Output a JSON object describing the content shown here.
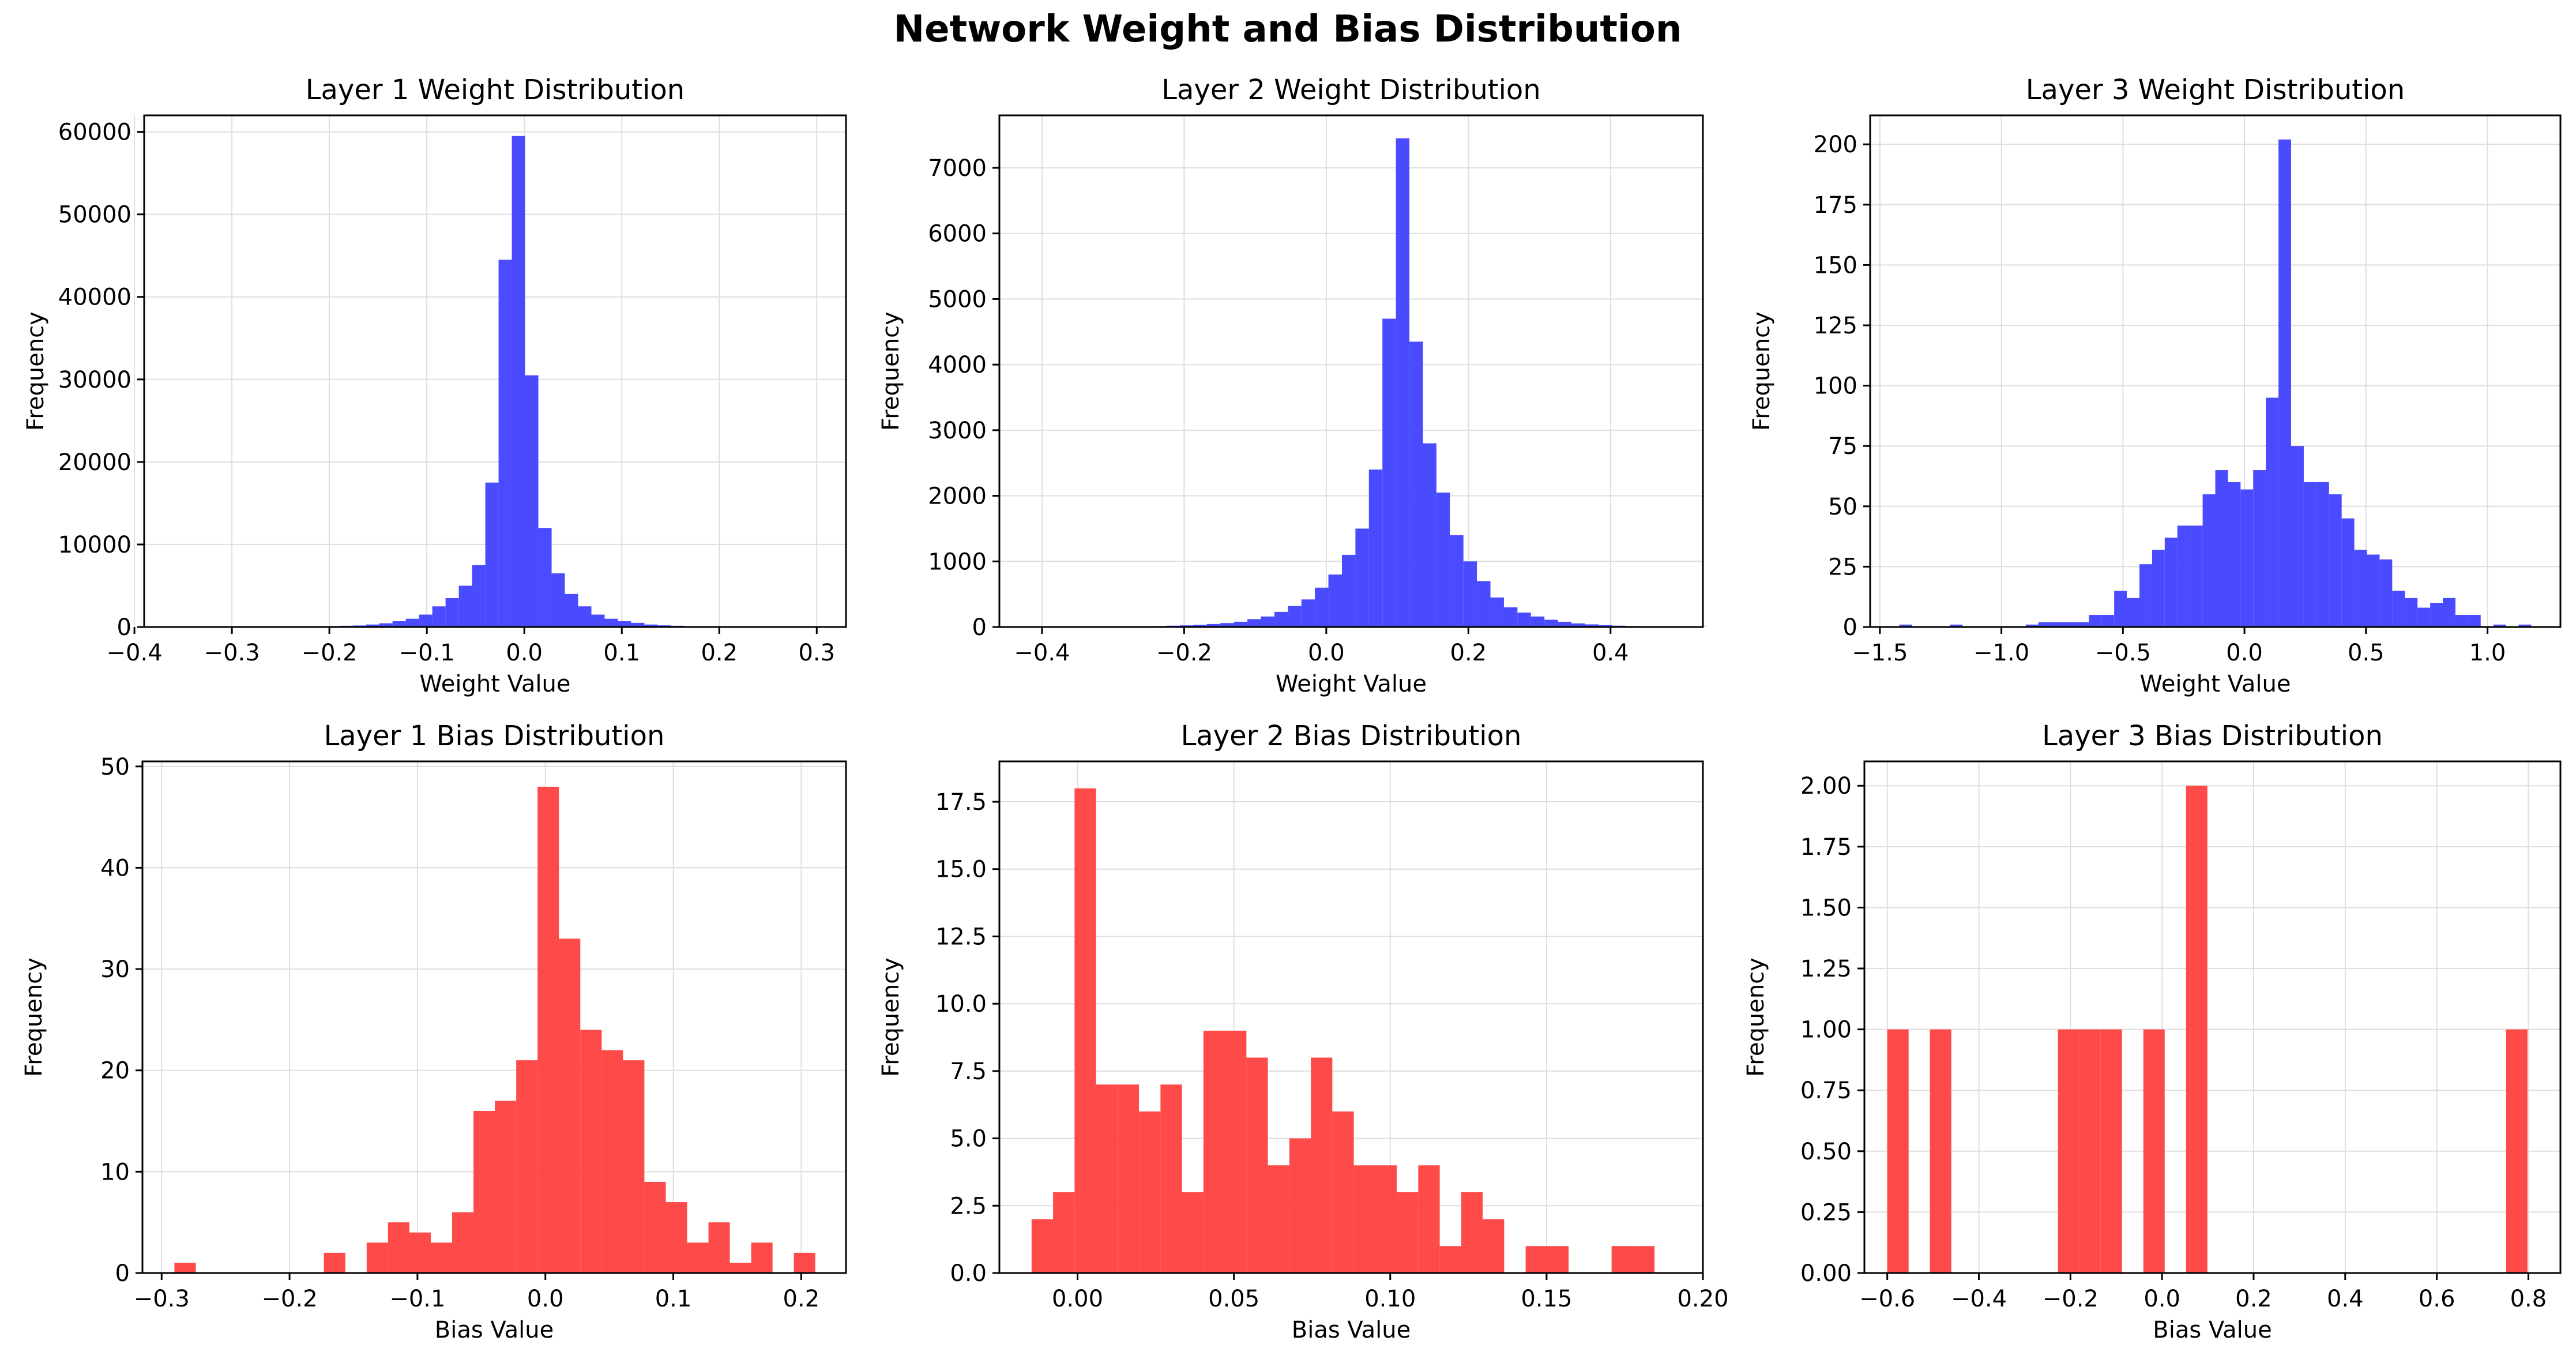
{
  "figure": {
    "title": "Network Weight and Bias Distribution"
  },
  "colors": {
    "weights": "#4a4aff",
    "biases": "#ff4a4a",
    "grid": "#dedede",
    "axis": "#000000"
  },
  "chart_data": [
    {
      "type": "bar",
      "title": "Layer 1 Weight Distribution",
      "xlabel": "Weight Value",
      "ylabel": "Frequency",
      "xlim": [
        -0.39,
        0.33
      ],
      "ylim": [
        0,
        62000
      ],
      "xticks": [
        -0.4,
        -0.3,
        -0.2,
        -0.1,
        0.0,
        0.1,
        0.2,
        0.3
      ],
      "xtick_labels": [
        "−0.4",
        "−0.3",
        "−0.2",
        "−0.1",
        "0.0",
        "0.1",
        "0.2",
        "0.3"
      ],
      "yticks": [
        0,
        10000,
        20000,
        30000,
        40000,
        50000,
        60000
      ],
      "ytick_labels": [
        "0",
        "10000",
        "20000",
        "30000",
        "40000",
        "50000",
        "60000"
      ],
      "grid": true,
      "color_key": "weights",
      "bin_start": -0.38,
      "bin_width": 0.0136,
      "values": [
        20,
        20,
        20,
        30,
        30,
        30,
        40,
        40,
        50,
        60,
        70,
        80,
        100,
        120,
        150,
        180,
        300,
        450,
        700,
        1000,
        1500,
        2500,
        3500,
        5000,
        7500,
        17500,
        44500,
        59500,
        30500,
        12000,
        6500,
        4000,
        2500,
        1500,
        1000,
        700,
        500,
        300,
        200,
        150,
        100,
        80,
        60,
        50,
        40,
        30,
        30,
        20,
        20,
        20
      ]
    },
    {
      "type": "bar",
      "title": "Layer 2 Weight Distribution",
      "xlabel": "Weight Value",
      "ylabel": "Frequency",
      "xlim": [
        -0.46,
        0.53
      ],
      "ylim": [
        0,
        7800
      ],
      "xticks": [
        -0.4,
        -0.2,
        0.0,
        0.2,
        0.4
      ],
      "xtick_labels": [
        "−0.4",
        "−0.2",
        "0.0",
        "0.2",
        "0.4"
      ],
      "yticks": [
        0,
        1000,
        2000,
        3000,
        4000,
        5000,
        6000,
        7000
      ],
      "ytick_labels": [
        "0",
        "1000",
        "2000",
        "3000",
        "4000",
        "5000",
        "6000",
        "7000"
      ],
      "grid": true,
      "color_key": "weights",
      "bin_start": -0.415,
      "bin_width": 0.019,
      "values": [
        2,
        3,
        3,
        5,
        5,
        8,
        8,
        10,
        12,
        15,
        20,
        25,
        35,
        45,
        60,
        80,
        120,
        160,
        230,
        320,
        420,
        600,
        800,
        1100,
        1500,
        2400,
        4700,
        7450,
        4350,
        2800,
        2050,
        1400,
        1000,
        700,
        450,
        300,
        220,
        160,
        110,
        80,
        55,
        40,
        30,
        20,
        15,
        10,
        8,
        5,
        4,
        3
      ]
    },
    {
      "type": "bar",
      "title": "Layer 3 Weight Distribution",
      "xlabel": "Weight Value",
      "ylabel": "Frequency",
      "xlim": [
        -1.54,
        1.3
      ],
      "ylim": [
        0,
        212
      ],
      "xticks": [
        -1.5,
        -1.0,
        -0.5,
        0.0,
        0.5,
        1.0
      ],
      "xtick_labels": [
        "−1.5",
        "−1.0",
        "−0.5",
        "0.0",
        "0.5",
        "1.0"
      ],
      "yticks": [
        0,
        25,
        50,
        75,
        100,
        125,
        150,
        175,
        200
      ],
      "ytick_labels": [
        "0",
        "25",
        "50",
        "75",
        "100",
        "125",
        "150",
        "175",
        "200"
      ],
      "grid": true,
      "color_key": "weights",
      "bin_start": -1.42,
      "bin_width": 0.052,
      "values": [
        1,
        0,
        0,
        0,
        1,
        0,
        0,
        0,
        0,
        0,
        1,
        2,
        2,
        2,
        2,
        5,
        5,
        15,
        12,
        26,
        32,
        37,
        42,
        42,
        55,
        65,
        60,
        57,
        65,
        95,
        202,
        75,
        60,
        60,
        55,
        45,
        32,
        30,
        28,
        15,
        12,
        8,
        10,
        12,
        5,
        5,
        0,
        1,
        0,
        1
      ]
    },
    {
      "type": "bar",
      "title": "Layer 1 Bias Distribution",
      "xlabel": "Bias Value",
      "ylabel": "Frequency",
      "xlim": [
        -0.315,
        0.235
      ],
      "ylim": [
        0,
        50.5
      ],
      "xticks": [
        -0.3,
        -0.2,
        -0.1,
        0.0,
        0.1,
        0.2
      ],
      "xtick_labels": [
        "−0.3",
        "−0.2",
        "−0.1",
        "0.0",
        "0.1",
        "0.2"
      ],
      "yticks": [
        0,
        10,
        20,
        30,
        40,
        50
      ],
      "ytick_labels": [
        "0",
        "10",
        "20",
        "30",
        "40",
        "50"
      ],
      "grid": true,
      "color_key": "biases",
      "bin_start": -0.29,
      "bin_width": 0.0167,
      "values": [
        1,
        0,
        0,
        0,
        0,
        0,
        0,
        2,
        0,
        3,
        5,
        4,
        3,
        6,
        16,
        17,
        21,
        48,
        33,
        24,
        22,
        21,
        9,
        7,
        3,
        5,
        1,
        3,
        0,
        2
      ]
    },
    {
      "type": "bar",
      "title": "Layer 2 Bias Distribution",
      "xlabel": "Bias Value",
      "ylabel": "Frequency",
      "xlim": [
        -0.025,
        0.2
      ],
      "ylim": [
        0,
        19
      ],
      "xticks": [
        0.0,
        0.05,
        0.1,
        0.15,
        0.2
      ],
      "xtick_labels": [
        "0.00",
        "0.05",
        "0.10",
        "0.15",
        "0.20"
      ],
      "yticks": [
        0,
        2.5,
        5,
        7.5,
        10,
        12.5,
        15,
        17.5
      ],
      "ytick_labels": [
        "0.0",
        "2.5",
        "5.0",
        "7.5",
        "10.0",
        "12.5",
        "15.0",
        "17.5"
      ],
      "grid": true,
      "color_key": "biases",
      "bin_start": -0.0147,
      "bin_width": 0.00687,
      "values": [
        2,
        3,
        18,
        7,
        7,
        6,
        7,
        3,
        9,
        9,
        8,
        4,
        5,
        8,
        6,
        4,
        4,
        3,
        4,
        1,
        3,
        2,
        0,
        1,
        1,
        0,
        0,
        1,
        1,
        0
      ]
    },
    {
      "type": "bar",
      "title": "Layer 3 Bias Distribution",
      "xlabel": "Bias Value",
      "ylabel": "Frequency",
      "xlim": [
        -0.65,
        0.87
      ],
      "ylim": [
        0,
        2.1
      ],
      "xticks": [
        -0.6,
        -0.4,
        -0.2,
        0.0,
        0.2,
        0.4,
        0.6,
        0.8
      ],
      "xtick_labels": [
        "−0.6",
        "−0.4",
        "−0.2",
        "0.0",
        "0.2",
        "0.4",
        "0.6",
        "0.8"
      ],
      "yticks": [
        0,
        0.25,
        0.5,
        0.75,
        1.0,
        1.25,
        1.5,
        1.75,
        2.0
      ],
      "ytick_labels": [
        "0.00",
        "0.25",
        "0.50",
        "0.75",
        "1.00",
        "1.25",
        "1.50",
        "1.75",
        "2.00"
      ],
      "grid": true,
      "color_key": "biases",
      "bin_start": -0.6,
      "bin_width": 0.0466,
      "values": [
        1,
        0,
        1,
        0,
        0,
        0,
        0,
        0,
        1,
        1,
        1,
        0,
        1,
        0,
        2,
        0,
        0,
        0,
        0,
        0,
        0,
        0,
        0,
        0,
        0,
        0,
        0,
        0,
        0,
        1
      ]
    }
  ]
}
